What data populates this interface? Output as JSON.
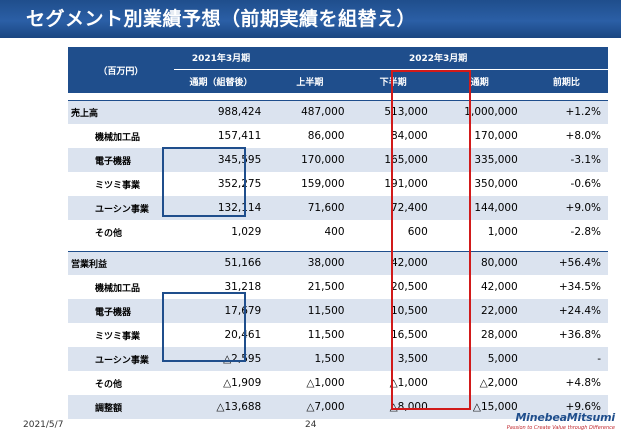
{
  "title": "セグメント別業績予想（前期実績を組替え）",
  "header": {
    "unit": "（百万円）",
    "fy2021": "2021年3月期",
    "fy2022": "2022年3月期",
    "full_restated": "通期（組替後）",
    "h1": "上半期",
    "h2": "下半期",
    "full": "通期",
    "yoy": "前期比"
  },
  "rows": [
    {
      "label": "売上高",
      "level": "main",
      "shade": true,
      "v": [
        "988,424",
        "487,000",
        "513,000",
        "1,000,000",
        "+1.2%"
      ]
    },
    {
      "label": "機械加工品",
      "level": "sub",
      "shade": false,
      "v": [
        "157,411",
        "86,000",
        "84,000",
        "170,000",
        "+8.0%"
      ]
    },
    {
      "label": "電子機器",
      "level": "sub",
      "shade": true,
      "v": [
        "345,595",
        "170,000",
        "165,000",
        "335,000",
        "-3.1%"
      ]
    },
    {
      "label": "ミツミ事業",
      "level": "sub",
      "shade": false,
      "v": [
        "352,275",
        "159,000",
        "191,000",
        "350,000",
        "-0.6%"
      ]
    },
    {
      "label": "ユーシン事業",
      "level": "sub",
      "shade": true,
      "v": [
        "132,114",
        "71,600",
        "72,400",
        "144,000",
        "+9.0%"
      ]
    },
    {
      "label": "その他",
      "level": "sub",
      "shade": false,
      "v": [
        "1,029",
        "400",
        "600",
        "1,000",
        "-2.8%"
      ]
    },
    {
      "label": "営業利益",
      "level": "main",
      "shade": true,
      "v": [
        "51,166",
        "38,000",
        "42,000",
        "80,000",
        "+56.4%"
      ]
    },
    {
      "label": "機械加工品",
      "level": "sub",
      "shade": false,
      "v": [
        "31,218",
        "21,500",
        "20,500",
        "42,000",
        "+34.5%"
      ]
    },
    {
      "label": "電子機器",
      "level": "sub",
      "shade": true,
      "v": [
        "17,679",
        "11,500",
        "10,500",
        "22,000",
        "+24.4%"
      ]
    },
    {
      "label": "ミツミ事業",
      "level": "sub",
      "shade": false,
      "v": [
        "20,461",
        "11,500",
        "16,500",
        "28,000",
        "+36.8%"
      ]
    },
    {
      "label": "ユーシン事業",
      "level": "sub",
      "shade": true,
      "v": [
        "△2,595",
        "1,500",
        "3,500",
        "5,000",
        "-"
      ]
    },
    {
      "label": "その他",
      "level": "sub",
      "shade": false,
      "v": [
        "△1,909",
        "△1,000",
        "△1,000",
        "△2,000",
        "+4.8%"
      ]
    },
    {
      "label": "調整額",
      "level": "sub",
      "shade": true,
      "v": [
        "△13,688",
        "△7,000",
        "△8,000",
        "△15,000",
        "+9.6%"
      ]
    }
  ],
  "footer": {
    "date": "2021/5/7",
    "page": "24",
    "logo": "MinebeaMitsumi",
    "tagline": "Passion to Create Value through Difference"
  },
  "colors": {
    "header_blue": "#1f4e8c",
    "row_shade": "#dbe3ef",
    "highlight_red": "#d11a1a"
  }
}
